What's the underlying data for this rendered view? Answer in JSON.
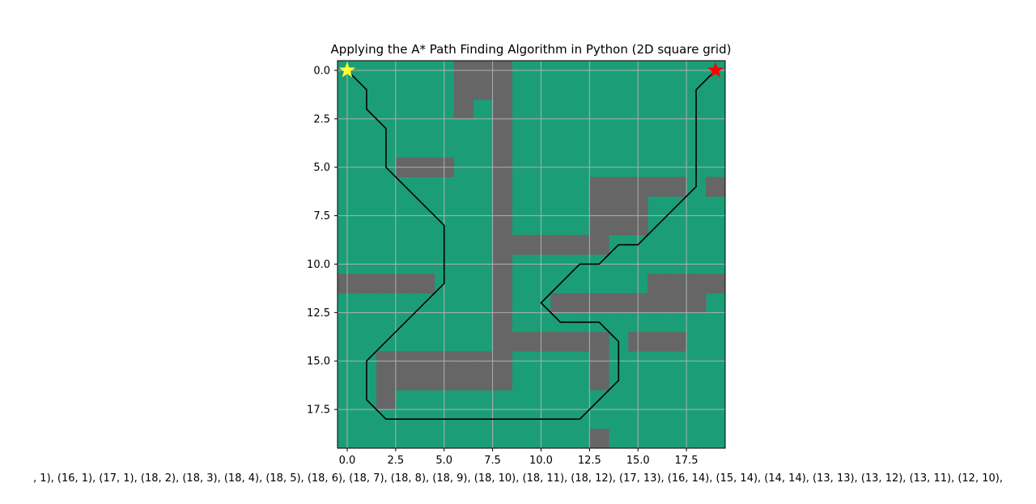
{
  "chart_data": {
    "type": "heatmap",
    "title": "Applying the A* Path Finding Algorithm in Python (2D square grid)",
    "grid_size": [
      20,
      20
    ],
    "xlim": [
      -0.5,
      19.5
    ],
    "ylim": [
      19.5,
      -0.5
    ],
    "x_ticks": [
      0.0,
      2.5,
      5.0,
      7.5,
      10.0,
      12.5,
      15.0,
      17.5
    ],
    "x_tick_labels": [
      "0.0",
      "2.5",
      "5.0",
      "7.5",
      "10.0",
      "12.5",
      "15.0",
      "17.5"
    ],
    "y_ticks": [
      0.0,
      2.5,
      5.0,
      7.5,
      10.0,
      12.5,
      15.0,
      17.5
    ],
    "y_tick_labels": [
      "0.0",
      "2.5",
      "5.0",
      "7.5",
      "10.0",
      "12.5",
      "15.0",
      "17.5"
    ],
    "grid": true,
    "colors": {
      "free": "#1b9e77",
      "obstacle": "#666666",
      "path": "#000000",
      "start": "#ffff33",
      "goal": "#ff0000",
      "gridline": "#b0b0b0"
    },
    "obstacles": [
      [
        6,
        0
      ],
      [
        7,
        0
      ],
      [
        8,
        0
      ],
      [
        6,
        1
      ],
      [
        7,
        1
      ],
      [
        8,
        1
      ],
      [
        6,
        2
      ],
      [
        8,
        2
      ],
      [
        8,
        3
      ],
      [
        8,
        4
      ],
      [
        3,
        5
      ],
      [
        4,
        5
      ],
      [
        5,
        5
      ],
      [
        8,
        5
      ],
      [
        8,
        6
      ],
      [
        13,
        6
      ],
      [
        14,
        6
      ],
      [
        15,
        6
      ],
      [
        16,
        6
      ],
      [
        17,
        6
      ],
      [
        19,
        6
      ],
      [
        8,
        7
      ],
      [
        13,
        7
      ],
      [
        14,
        7
      ],
      [
        15,
        7
      ],
      [
        8,
        8
      ],
      [
        13,
        8
      ],
      [
        14,
        8
      ],
      [
        15,
        8
      ],
      [
        8,
        9
      ],
      [
        9,
        9
      ],
      [
        10,
        9
      ],
      [
        11,
        9
      ],
      [
        12,
        9
      ],
      [
        13,
        9
      ],
      [
        8,
        10
      ],
      [
        0,
        11
      ],
      [
        1,
        11
      ],
      [
        2,
        11
      ],
      [
        3,
        11
      ],
      [
        4,
        11
      ],
      [
        8,
        11
      ],
      [
        16,
        11
      ],
      [
        17,
        11
      ],
      [
        18,
        11
      ],
      [
        19,
        11
      ],
      [
        8,
        12
      ],
      [
        11,
        12
      ],
      [
        12,
        12
      ],
      [
        13,
        12
      ],
      [
        14,
        12
      ],
      [
        15,
        12
      ],
      [
        16,
        12
      ],
      [
        17,
        12
      ],
      [
        18,
        12
      ],
      [
        8,
        13
      ],
      [
        8,
        14
      ],
      [
        9,
        14
      ],
      [
        10,
        14
      ],
      [
        11,
        14
      ],
      [
        12,
        14
      ],
      [
        13,
        14
      ],
      [
        15,
        14
      ],
      [
        16,
        14
      ],
      [
        17,
        14
      ],
      [
        2,
        15
      ],
      [
        3,
        15
      ],
      [
        4,
        15
      ],
      [
        5,
        15
      ],
      [
        6,
        15
      ],
      [
        7,
        15
      ],
      [
        8,
        15
      ],
      [
        13,
        15
      ],
      [
        2,
        16
      ],
      [
        3,
        16
      ],
      [
        4,
        16
      ],
      [
        5,
        16
      ],
      [
        6,
        16
      ],
      [
        7,
        16
      ],
      [
        8,
        16
      ],
      [
        13,
        16
      ],
      [
        2,
        17
      ],
      [
        13,
        19
      ]
    ],
    "path": {
      "x": [
        0,
        1,
        1,
        2,
        2,
        5,
        5,
        1,
        1,
        2,
        12,
        14,
        14,
        13,
        11,
        10,
        12,
        13,
        14,
        15,
        18,
        18,
        19
      ],
      "y": [
        0,
        1,
        2,
        3,
        5,
        8,
        11,
        15,
        17,
        18,
        18,
        16,
        14,
        13,
        13,
        12,
        10,
        10,
        9,
        9,
        6,
        1,
        0
      ]
    },
    "start": [
      0,
      0
    ],
    "goal": [
      19,
      0
    ],
    "caption": ", 1), (16, 1), (17, 1), (18, 2), (18, 3), (18, 4), (18, 5), (18, 6), (18, 7), (18, 8), (18, 9), (18, 10), (18, 11), (18, 12), (17, 13), (16, 14), (15, 14), (14, 14), (13, 13), (13, 12), (13, 11), (12, 10),"
  }
}
